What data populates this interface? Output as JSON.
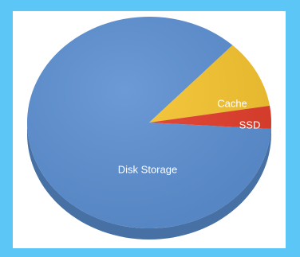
{
  "chart_data": {
    "type": "pie",
    "title": "",
    "labels": [
      "Disk Storage",
      "Cache",
      "SSD"
    ],
    "values": [
      86,
      10.5,
      3.5
    ],
    "colors": [
      "#5b8fd2",
      "#f6c42e",
      "#e23c2a"
    ],
    "style": "3d",
    "legend": "none"
  },
  "page": {
    "background": "#5cc6f7",
    "frame_background": "#ffffff"
  }
}
